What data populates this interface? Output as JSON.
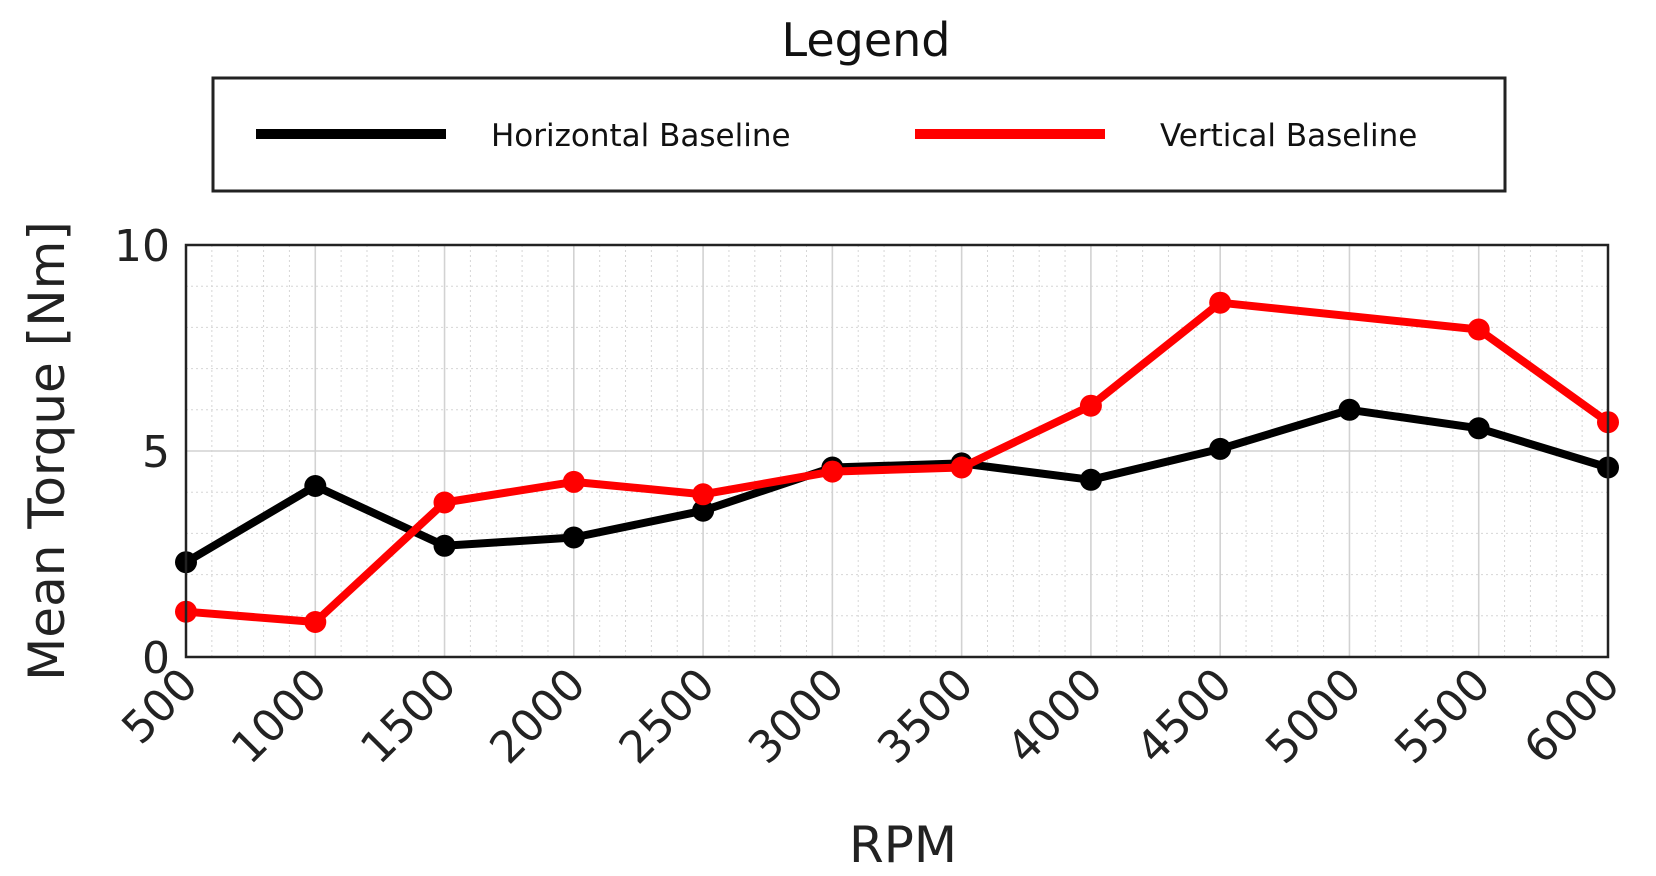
{
  "chart_data": {
    "type": "line",
    "title": "",
    "legend": {
      "title": "Legend",
      "placement": "top",
      "entries": [
        "Horizontal Baseline",
        "Vertical Baseline"
      ]
    },
    "xlabel": "RPM",
    "ylabel": "Mean Torque [Nm]",
    "x": [
      500,
      1000,
      1500,
      2000,
      2500,
      3000,
      3500,
      4000,
      4500,
      5000,
      5500,
      6000
    ],
    "x_tick_labels": [
      "500",
      "1000",
      "1500",
      "2000",
      "2500",
      "3000",
      "3500",
      "4000",
      "4500",
      "5000",
      "5500",
      "6000"
    ],
    "y_tick_labels": [
      "0",
      "5",
      "10"
    ],
    "y_ticks": [
      0,
      5,
      10
    ],
    "ylim": [
      0,
      10
    ],
    "grid": true,
    "minor_grid": true,
    "series": [
      {
        "name": "Horizontal Baseline",
        "color": "#000000",
        "values": [
          2.3,
          4.15,
          2.7,
          2.9,
          3.55,
          4.6,
          4.7,
          4.3,
          5.05,
          6.0,
          5.55,
          4.6
        ]
      },
      {
        "name": "Vertical Baseline",
        "color": "#ff0000",
        "values": [
          1.1,
          0.85,
          3.75,
          4.25,
          3.95,
          4.5,
          4.6,
          6.1,
          8.6,
          null,
          7.95,
          5.7
        ]
      }
    ]
  }
}
